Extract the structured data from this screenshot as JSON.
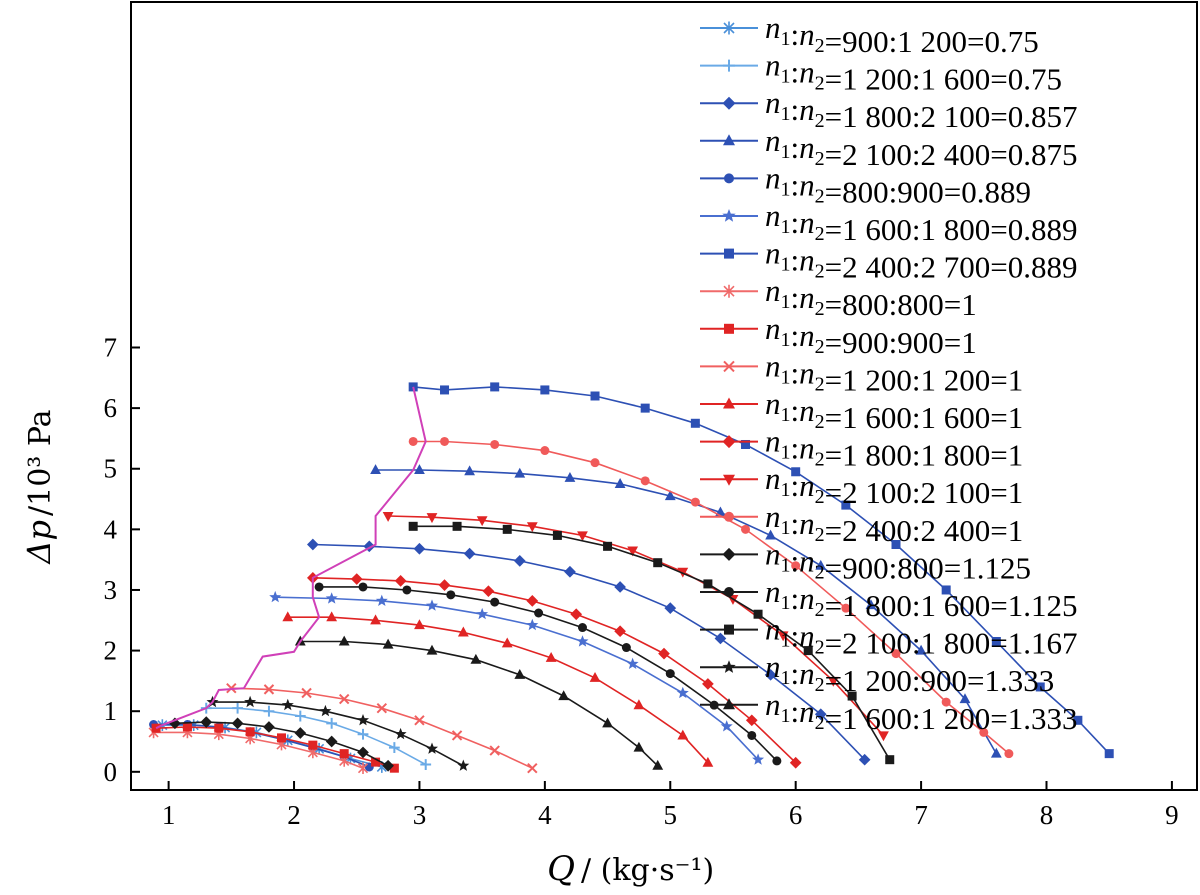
{
  "chart_data": {
    "type": "line",
    "title": "",
    "xlabel_symbol": "Q",
    "xlabel_unit": "/ (kg·s⁻¹)",
    "ylabel_symbol": "Δp",
    "ylabel_unit": "/10³ Pa",
    "xlim": [
      0.7,
      9.2
    ],
    "ylim": [
      -0.3,
      12.7
    ],
    "xticks": [
      1,
      2,
      3,
      4,
      5,
      6,
      7,
      8,
      9
    ],
    "yticks": [
      0,
      1,
      2,
      3,
      4,
      5,
      6,
      7
    ],
    "grid": false,
    "legend_position": "top-right",
    "series": [
      {
        "name": "n1:n2=900:1 200=0.75",
        "color": "#4a90d9",
        "marker": "asterisk",
        "x": [
          0.95,
          1.2,
          1.45,
          1.7,
          1.95,
          2.2,
          2.45,
          2.7
        ],
        "y": [
          0.77,
          0.77,
          0.73,
          0.65,
          0.52,
          0.38,
          0.22,
          0.08
        ]
      },
      {
        "name": "n1:n2=1 200:1 600=0.75",
        "color": "#6aaae6",
        "marker": "plus",
        "x": [
          1.3,
          1.55,
          1.8,
          2.05,
          2.3,
          2.55,
          2.8,
          3.05
        ],
        "y": [
          1.05,
          1.05,
          1.0,
          0.92,
          0.8,
          0.62,
          0.4,
          0.12
        ]
      },
      {
        "name": "n1:n2=1 800:2 100=0.857",
        "color": "#2d50b4",
        "marker": "diamond",
        "x": [
          2.15,
          2.6,
          3.0,
          3.4,
          3.8,
          4.2,
          4.6,
          5.0,
          5.4,
          5.8,
          6.2,
          6.55
        ],
        "y": [
          3.75,
          3.72,
          3.68,
          3.6,
          3.48,
          3.3,
          3.05,
          2.7,
          2.2,
          1.6,
          0.95,
          0.2
        ]
      },
      {
        "name": "n1:n2=2 100:2 400=0.875",
        "color": "#2d50b4",
        "marker": "triangle-up",
        "x": [
          2.65,
          3.0,
          3.4,
          3.8,
          4.2,
          4.6,
          5.0,
          5.4,
          5.8,
          6.2,
          6.6,
          7.0,
          7.35,
          7.6
        ],
        "y": [
          4.98,
          4.98,
          4.96,
          4.92,
          4.85,
          4.75,
          4.55,
          4.28,
          3.9,
          3.4,
          2.75,
          2.0,
          1.2,
          0.3
        ]
      },
      {
        "name": "n1:n2=800:900=0.889",
        "color": "#2d50b4",
        "marker": "circle",
        "x": [
          0.88,
          1.15,
          1.4,
          1.65,
          1.9,
          2.15,
          2.4,
          2.6
        ],
        "y": [
          0.78,
          0.78,
          0.74,
          0.66,
          0.54,
          0.4,
          0.25,
          0.08
        ]
      },
      {
        "name": "n1:n2=1 600:1 800=0.889",
        "color": "#4a6fd0",
        "marker": "star",
        "x": [
          1.85,
          2.3,
          2.7,
          3.1,
          3.5,
          3.9,
          4.3,
          4.7,
          5.1,
          5.45,
          5.7
        ],
        "y": [
          2.88,
          2.86,
          2.82,
          2.74,
          2.6,
          2.42,
          2.15,
          1.78,
          1.3,
          0.75,
          0.2
        ]
      },
      {
        "name": "n1:n2=2 400:2 700=0.889",
        "color": "#2d50b4",
        "marker": "square",
        "x": [
          2.95,
          3.2,
          3.6,
          4.0,
          4.4,
          4.8,
          5.2,
          5.6,
          6.0,
          6.4,
          6.8,
          7.2,
          7.6,
          7.95,
          8.25,
          8.5
        ],
        "y": [
          6.35,
          6.3,
          6.35,
          6.3,
          6.2,
          6.0,
          5.75,
          5.4,
          4.95,
          4.4,
          3.75,
          3.0,
          2.15,
          1.4,
          0.85,
          0.3
        ]
      },
      {
        "name": "n1:n2=800:800=1",
        "color": "#f06a6a",
        "marker": "asterisk",
        "x": [
          0.88,
          1.15,
          1.4,
          1.65,
          1.9,
          2.15,
          2.4,
          2.55
        ],
        "y": [
          0.65,
          0.65,
          0.62,
          0.55,
          0.45,
          0.32,
          0.18,
          0.06
        ]
      },
      {
        "name": "n1:n2=900:900=1",
        "color": "#e02424",
        "marker": "square",
        "x": [
          0.9,
          1.15,
          1.4,
          1.65,
          1.9,
          2.15,
          2.4,
          2.65,
          2.8
        ],
        "y": [
          0.72,
          0.74,
          0.72,
          0.66,
          0.56,
          0.44,
          0.3,
          0.16,
          0.06
        ]
      },
      {
        "name": "n1:n2=1 200:1 200=1",
        "color": "#f06060",
        "marker": "cross",
        "x": [
          1.5,
          1.8,
          2.1,
          2.4,
          2.7,
          3.0,
          3.3,
          3.6,
          3.9
        ],
        "y": [
          1.38,
          1.36,
          1.3,
          1.2,
          1.05,
          0.85,
          0.6,
          0.35,
          0.06
        ]
      },
      {
        "name": "n1:n2=1 600:1 600=1",
        "color": "#e02424",
        "marker": "triangle-up",
        "x": [
          1.95,
          2.3,
          2.65,
          3.0,
          3.35,
          3.7,
          4.05,
          4.4,
          4.75,
          5.1,
          5.3
        ],
        "y": [
          2.55,
          2.55,
          2.5,
          2.42,
          2.3,
          2.12,
          1.88,
          1.55,
          1.1,
          0.6,
          0.15
        ]
      },
      {
        "name": "n1:n2=1 800:1 800=1",
        "color": "#e02424",
        "marker": "diamond",
        "x": [
          2.15,
          2.5,
          2.85,
          3.2,
          3.55,
          3.9,
          4.25,
          4.6,
          4.95,
          5.3,
          5.65,
          6.0
        ],
        "y": [
          3.2,
          3.18,
          3.15,
          3.08,
          2.98,
          2.82,
          2.6,
          2.32,
          1.95,
          1.45,
          0.85,
          0.15
        ]
      },
      {
        "name": "n1:n2=2 100:2 100=1",
        "color": "#e02424",
        "marker": "triangle-down",
        "x": [
          2.75,
          3.1,
          3.5,
          3.9,
          4.3,
          4.7,
          5.1,
          5.5,
          5.9,
          6.3,
          6.7
        ],
        "y": [
          4.22,
          4.2,
          4.15,
          4.05,
          3.9,
          3.65,
          3.3,
          2.85,
          2.25,
          1.5,
          0.6
        ]
      },
      {
        "name": "n1:n2=2 400:2 400=1",
        "color": "#f05a5a",
        "marker": "circle",
        "x": [
          2.95,
          3.2,
          3.6,
          4.0,
          4.4,
          4.8,
          5.2,
          5.6,
          6.0,
          6.4,
          6.8,
          7.2,
          7.5,
          7.7
        ],
        "y": [
          5.45,
          5.45,
          5.4,
          5.3,
          5.1,
          4.8,
          4.45,
          4.0,
          3.4,
          2.7,
          1.95,
          1.15,
          0.65,
          0.3
        ]
      },
      {
        "name": "n1:n2=900:800=1.125",
        "color": "#1a1a1a",
        "marker": "diamond",
        "x": [
          1.05,
          1.3,
          1.55,
          1.8,
          2.05,
          2.3,
          2.55,
          2.75
        ],
        "y": [
          0.8,
          0.82,
          0.8,
          0.74,
          0.64,
          0.5,
          0.32,
          0.1
        ]
      },
      {
        "name": "n1:n2=1 800:1 600=1.125",
        "color": "#1a1a1a",
        "marker": "circle",
        "x": [
          2.2,
          2.55,
          2.9,
          3.25,
          3.6,
          3.95,
          4.3,
          4.65,
          5.0,
          5.35,
          5.65,
          5.85
        ],
        "y": [
          3.05,
          3.05,
          3.0,
          2.92,
          2.8,
          2.62,
          2.38,
          2.05,
          1.62,
          1.1,
          0.6,
          0.18
        ]
      },
      {
        "name": "n1:n2=2 100:1 800=1.167",
        "color": "#1a1a1a",
        "marker": "square",
        "x": [
          2.95,
          3.3,
          3.7,
          4.1,
          4.5,
          4.9,
          5.3,
          5.7,
          6.1,
          6.45,
          6.75
        ],
        "y": [
          4.05,
          4.05,
          4.0,
          3.9,
          3.72,
          3.45,
          3.1,
          2.6,
          2.0,
          1.25,
          0.2
        ]
      },
      {
        "name": "n1:n2=1 200:900=1.333",
        "color": "#1a1a1a",
        "marker": "star",
        "x": [
          1.35,
          1.65,
          1.95,
          2.25,
          2.55,
          2.85,
          3.1,
          3.35
        ],
        "y": [
          1.15,
          1.15,
          1.1,
          1.0,
          0.85,
          0.62,
          0.38,
          0.1
        ]
      },
      {
        "name": "n1:n2=1 600:1 200=1.333",
        "color": "#1a1a1a",
        "marker": "triangle-up",
        "x": [
          2.05,
          2.4,
          2.75,
          3.1,
          3.45,
          3.8,
          4.15,
          4.5,
          4.75,
          4.9
        ],
        "y": [
          2.15,
          2.15,
          2.1,
          2.0,
          1.85,
          1.6,
          1.25,
          0.8,
          0.4,
          0.1
        ]
      }
    ],
    "connector": {
      "color": "#d040b8",
      "x": [
        0.9,
        0.95,
        1.3,
        1.35,
        1.4,
        1.6,
        1.75,
        2.0,
        2.05,
        2.2,
        2.15,
        2.15,
        2.65,
        2.65,
        2.95,
        3.05,
        2.95
      ],
      "y": [
        0.72,
        0.77,
        1.05,
        1.15,
        1.35,
        1.38,
        1.9,
        1.98,
        2.15,
        2.55,
        2.88,
        3.2,
        3.75,
        4.22,
        4.98,
        5.45,
        6.35
      ]
    }
  }
}
